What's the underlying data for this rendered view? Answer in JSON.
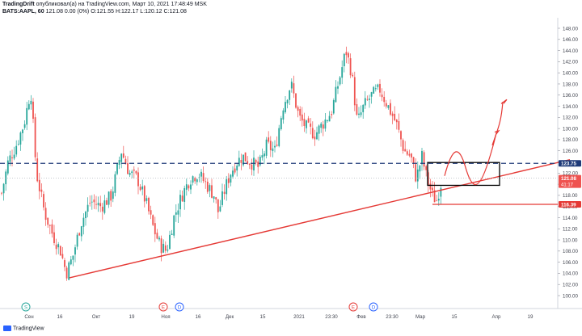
{
  "header": {
    "line1_author": "TradingDrift",
    "line1_rest": "опубликовал(а) на TradingView.com, Март 10, 2021 17:48:49 MSK",
    "line2_symbol": "BATS:AAPL, 60",
    "line2_rest": "121.08 0.00 (0%) O:121.55 H:122.17 L:120.12 C:121.08"
  },
  "brand": "TradingView",
  "chart_data": {
    "type": "candlestick",
    "y_axis": {
      "min": 100,
      "max": 150,
      "step": 2,
      "ticks": [
        "100.00",
        "102.00",
        "104.00",
        "106.00",
        "108.00",
        "110.00",
        "112.00",
        "114.00",
        "116.00",
        "118.00",
        "120.00",
        "122.00",
        "124.00",
        "126.00",
        "128.00",
        "130.00",
        "132.00",
        "134.00",
        "136.00",
        "138.00",
        "140.00",
        "142.00",
        "144.00",
        "146.00",
        "148.00"
      ]
    },
    "x_axis": {
      "ticks": [
        "Сен",
        "16",
        "Окт",
        "19",
        "Ноя",
        "16",
        "Дек",
        "15",
        "2021",
        "23:30",
        "Фев",
        "23:30",
        "Мар",
        "15",
        "Апр",
        "19"
      ]
    },
    "price_path": [
      [
        0,
        117
      ],
      [
        10,
        124
      ],
      [
        20,
        127
      ],
      [
        30,
        131
      ],
      [
        38,
        137
      ],
      [
        45,
        122
      ],
      [
        55,
        115
      ],
      [
        65,
        111
      ],
      [
        75,
        108
      ],
      [
        82,
        104
      ],
      [
        90,
        107
      ],
      [
        100,
        113
      ],
      [
        112,
        117
      ],
      [
        125,
        116
      ],
      [
        138,
        118
      ],
      [
        150,
        126
      ],
      [
        160,
        122
      ],
      [
        170,
        121
      ],
      [
        180,
        117
      ],
      [
        190,
        112
      ],
      [
        198,
        109
      ],
      [
        206,
        108
      ],
      [
        215,
        114
      ],
      [
        225,
        118
      ],
      [
        235,
        121
      ],
      [
        245,
        122
      ],
      [
        255,
        120
      ],
      [
        265,
        118
      ],
      [
        270,
        115
      ],
      [
        278,
        119
      ],
      [
        285,
        122
      ],
      [
        293,
        124
      ],
      [
        300,
        125
      ],
      [
        310,
        124
      ],
      [
        320,
        123
      ],
      [
        330,
        127
      ],
      [
        340,
        126
      ],
      [
        350,
        134
      ],
      [
        360,
        138
      ],
      [
        370,
        132
      ],
      [
        380,
        130
      ],
      [
        390,
        129
      ],
      [
        400,
        131
      ],
      [
        410,
        133
      ],
      [
        420,
        139
      ],
      [
        428,
        144
      ],
      [
        435,
        140
      ],
      [
        442,
        131
      ],
      [
        450,
        134
      ],
      [
        460,
        136
      ],
      [
        470,
        137
      ],
      [
        480,
        134
      ],
      [
        490,
        131
      ],
      [
        500,
        126
      ],
      [
        508,
        125
      ],
      [
        515,
        121
      ],
      [
        522,
        125
      ],
      [
        528,
        121
      ],
      [
        535,
        118
      ],
      [
        540,
        117
      ],
      [
        545,
        120
      ],
      [
        548,
        121
      ]
    ],
    "levels": [
      {
        "label": "123.75",
        "value": 123.75,
        "style": "dashed",
        "color": "#1e3a78"
      },
      {
        "label": "121.08",
        "value": 121.08,
        "style": "dotted",
        "color": "#b2b5be",
        "sub_label": "41:17"
      },
      {
        "label": "116.39",
        "value": 116.39,
        "style": "solid",
        "color": "#e53935"
      }
    ],
    "trendline": {
      "start": [
        86,
        103.2
      ],
      "end": [
        705,
        124.4
      ],
      "color": "#e53935"
    },
    "projection_box": {
      "x0": 529,
      "x1": 618,
      "y_top": 123.9,
      "y_bottom": 119.8,
      "color": "#000000"
    },
    "event_markers": [
      {
        "label": "S",
        "x": 32,
        "color": "#26a69a"
      },
      {
        "label": "E",
        "x": 202,
        "color": "#e53935"
      },
      {
        "label": "D",
        "x": 222,
        "color": "#2962ff"
      },
      {
        "label": "E",
        "x": 437,
        "color": "#e53935"
      },
      {
        "label": "D",
        "x": 462,
        "color": "#2962ff"
      }
    ],
    "colors": {
      "up": "#26a69a",
      "down": "#ef5350"
    }
  }
}
